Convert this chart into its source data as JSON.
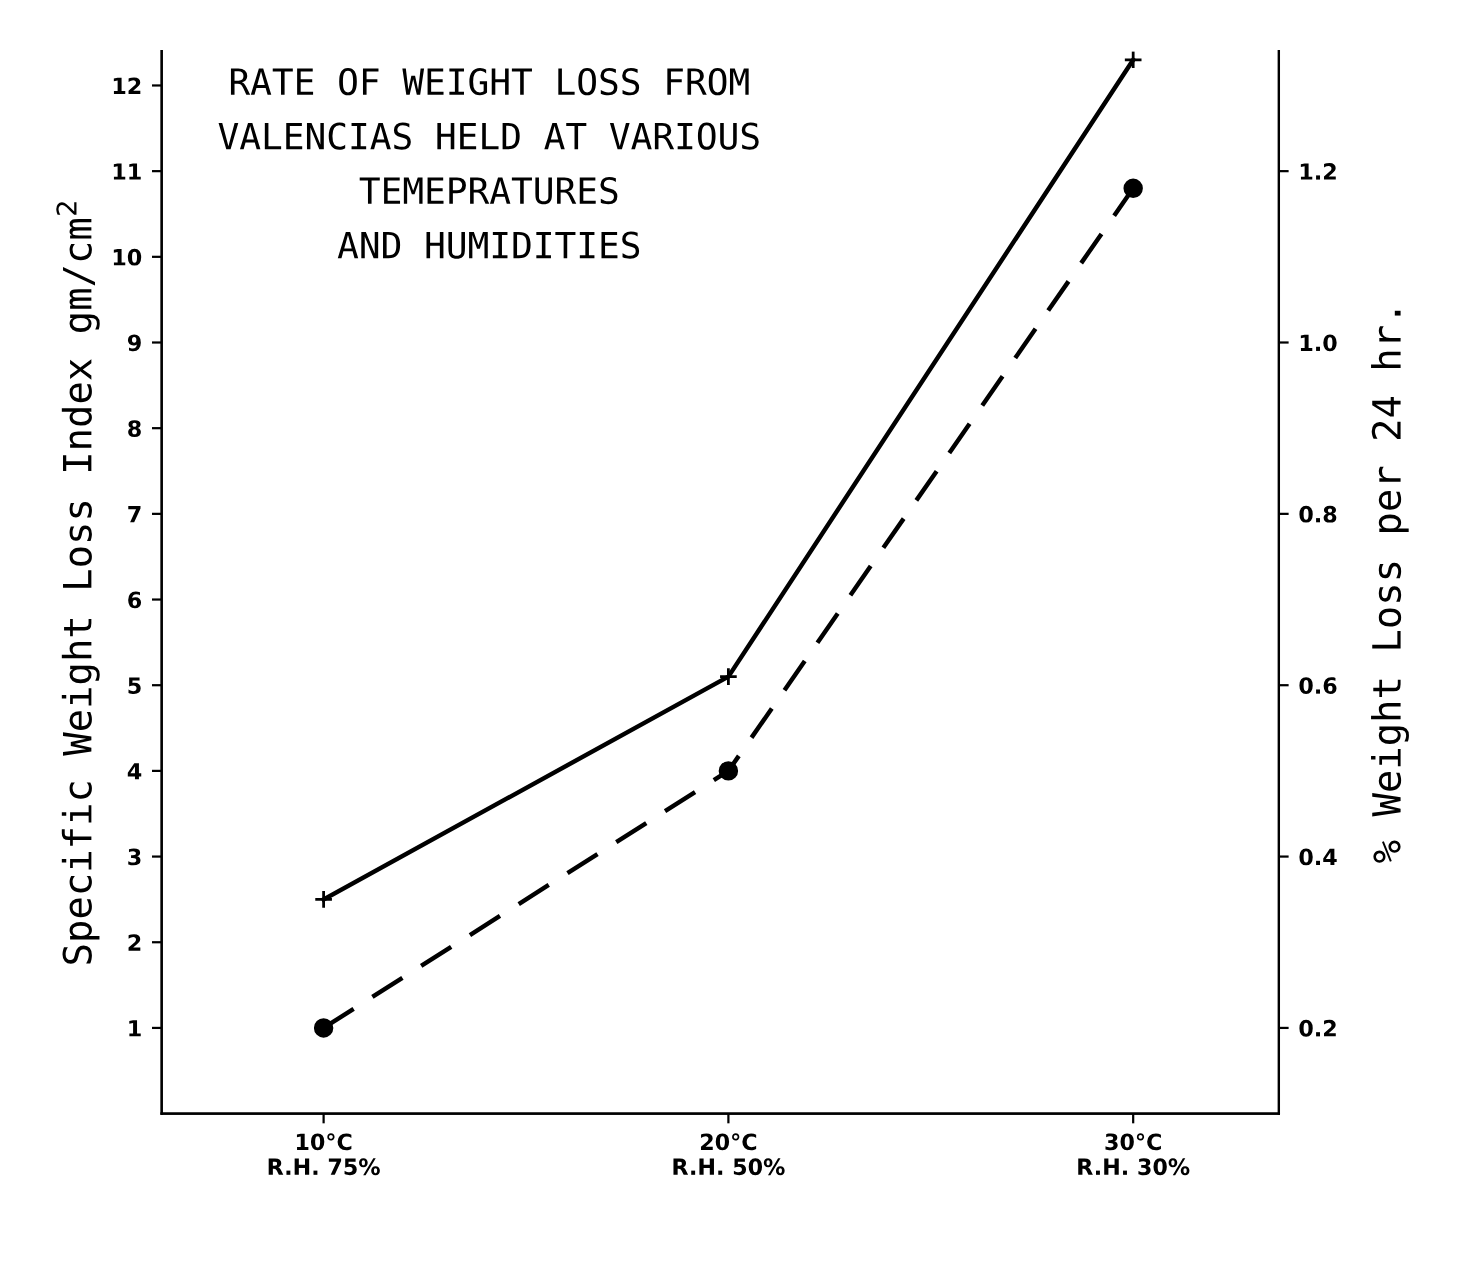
{
  "chart_data": {
    "type": "line",
    "title": "RATE OF WEIGHT LOSS FROM\nVALENCIAS HELD AT VARIOUS\nTEMEPRATURES\nAND HUMIDITIES",
    "ylabel": "Specific Weight Loss Index gm/cm$^{2}$",
    "y2label": "% Weight Loss per 24 hr.",
    "categories": [
      "10°C\nR.H. 75%",
      "20°C\nR.H. 50%",
      "30°C\nR.H. 30%"
    ],
    "series": [
      {
        "color": "#000000",
        "values": [
          2.5,
          5.1,
          12.3
        ],
        "line_style": "solid",
        "marker": "cross"
      },
      {
        "color": "#000000",
        "values": [
          1.0,
          4.0,
          10.8
        ],
        "line_style": "dashed",
        "marker": "circle"
      }
    ],
    "ylim": [
      0,
      12.4
    ],
    "yticks": [
      1,
      2,
      3,
      4,
      5,
      6,
      7,
      8,
      9,
      10,
      11,
      12
    ],
    "y2lim": [
      0.1,
      1.34
    ],
    "y2ticks": [
      0.2,
      0.4,
      0.6,
      0.8,
      {
        "value": 1,
        "label": "1.0"
      },
      1.2
    ],
    "grid": false,
    "legend": false
  }
}
